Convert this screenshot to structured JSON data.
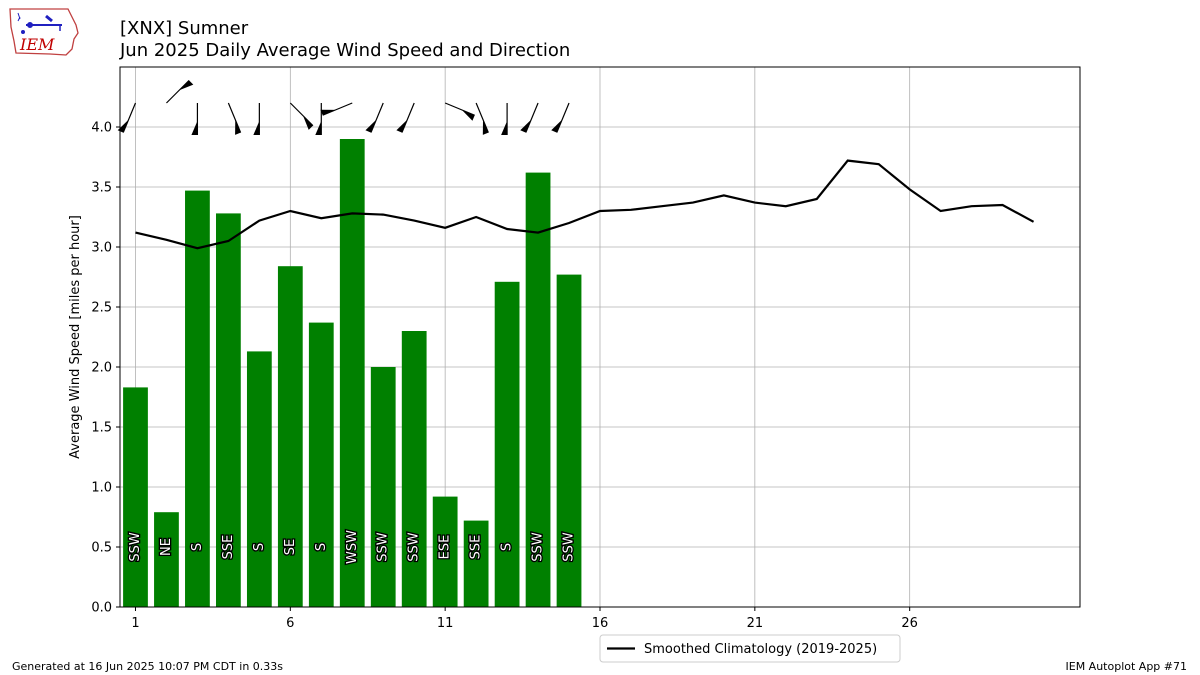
{
  "header": {
    "station": "[XNX] Sumner",
    "title": "Jun 2025 Daily Average Wind Speed and Direction"
  },
  "logo_text": "IEM",
  "footer": {
    "generated": "Generated at 16 Jun 2025 10:07 PM CDT in 0.33s",
    "app": "IEM Autoplot App #71"
  },
  "colors": {
    "bars": "#008000",
    "climatology": "#000000",
    "grid": "#b0b0b0",
    "logo": "#c00000"
  },
  "chart_data": {
    "type": "bar",
    "ylabel": "Average Wind Speed [miles per hour]",
    "xlabel": "",
    "xlim": [
      0.5,
      31.5
    ],
    "ylim": [
      0,
      4.5
    ],
    "xticks": [
      1,
      6,
      11,
      16,
      21,
      26
    ],
    "yticks": [
      "0.0",
      "0.5",
      "1.0",
      "1.5",
      "2.0",
      "2.5",
      "3.0",
      "3.5",
      "4.0"
    ],
    "grid": true,
    "legend_position": "bottom-center",
    "days": [
      1,
      2,
      3,
      4,
      5,
      6,
      7,
      8,
      9,
      10,
      11,
      12,
      13,
      14,
      15
    ],
    "values": [
      1.83,
      0.79,
      3.47,
      3.28,
      2.13,
      2.84,
      2.37,
      3.9,
      2.0,
      2.3,
      0.92,
      0.72,
      2.71,
      3.62,
      2.77
    ],
    "directions": [
      "SSW",
      "NE",
      "S",
      "SSE",
      "S",
      "SE",
      "S",
      "WSW",
      "SSW",
      "SSW",
      "ESE",
      "SSE",
      "S",
      "SSW",
      "SSW"
    ],
    "direction_degrees": [
      202.5,
      45,
      180,
      157.5,
      180,
      135,
      180,
      247.5,
      202.5,
      202.5,
      112.5,
      157.5,
      180,
      202.5,
      202.5
    ],
    "series": [
      {
        "name": "Smoothed Climatology (2019-2025)",
        "x": [
          1,
          2,
          3,
          4,
          5,
          6,
          7,
          8,
          9,
          10,
          11,
          12,
          13,
          14,
          15,
          16,
          17,
          18,
          19,
          20,
          21,
          22,
          23,
          24,
          25,
          26,
          27,
          28,
          29,
          30
        ],
        "values": [
          3.12,
          3.06,
          2.99,
          3.05,
          3.22,
          3.3,
          3.24,
          3.28,
          3.27,
          3.22,
          3.16,
          3.25,
          3.15,
          3.12,
          3.2,
          3.3,
          3.31,
          3.34,
          3.37,
          3.43,
          3.37,
          3.34,
          3.4,
          3.72,
          3.69,
          3.48,
          3.3,
          3.34,
          3.35,
          3.21
        ]
      }
    ]
  }
}
